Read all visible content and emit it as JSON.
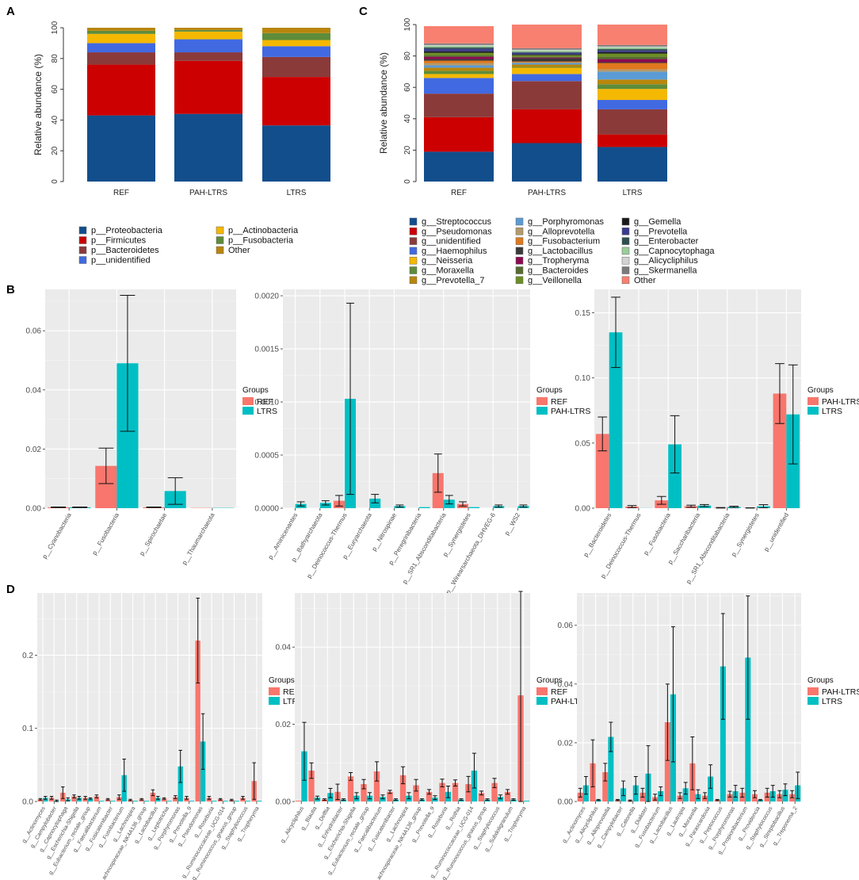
{
  "panels": {
    "A": "A",
    "B": "B",
    "C": "C",
    "D": "D"
  },
  "legend_title": "Groups",
  "colors": {
    "red": "#F8766D",
    "teal": "#00BFC4",
    "panel_bg": "#EBEBEB"
  },
  "chart_data": [
    {
      "id": "A",
      "type": "bar",
      "stacked": true,
      "ylabel": "Relative abundance (%)",
      "ylim": [
        0,
        100
      ],
      "yticks": [
        0,
        20,
        40,
        60,
        80,
        100
      ],
      "categories": [
        "REF",
        "PAH-LTRS",
        "LTRS"
      ],
      "series": [
        {
          "name": "p__Proteobacteria",
          "color": "#124E8C",
          "values": [
            43,
            44,
            36.5
          ]
        },
        {
          "name": "p__Firmicutes",
          "color": "#CC0000",
          "values": [
            33,
            34.5,
            31.5
          ]
        },
        {
          "name": "p__Bacteroidetes",
          "color": "#8B3A3A",
          "values": [
            8,
            5.5,
            13
          ]
        },
        {
          "name": "p__unidentified",
          "color": "#4169E1",
          "values": [
            6,
            8.5,
            7
          ]
        },
        {
          "name": "p__Actinobacteria",
          "color": "#F5B800",
          "values": [
            6,
            5,
            4
          ]
        },
        {
          "name": "p__Fusobacteria",
          "color": "#5E8C3A",
          "values": [
            2,
            1,
            4.5
          ]
        },
        {
          "name": "Other",
          "color": "#B8860B",
          "values": [
            2,
            1.5,
            3.5
          ]
        }
      ]
    },
    {
      "id": "C",
      "type": "bar",
      "stacked": true,
      "ylabel": "Relative abundance (%)",
      "ylim": [
        0,
        100
      ],
      "yticks": [
        0,
        20,
        40,
        60,
        80,
        100
      ],
      "categories": [
        "REF",
        "PAH-LTRS",
        "LTRS"
      ],
      "series": [
        {
          "name": "g__Streptococcus",
          "color": "#124E8C",
          "values": [
            19,
            24.5,
            22
          ]
        },
        {
          "name": "g__Pseudomonas",
          "color": "#CC0000",
          "values": [
            22,
            21.5,
            8
          ]
        },
        {
          "name": "g__unidentified",
          "color": "#8B3A3A",
          "values": [
            15,
            18,
            16
          ]
        },
        {
          "name": "g__Haemophilus",
          "color": "#4169E1",
          "values": [
            10,
            4.5,
            6
          ]
        },
        {
          "name": "g__Neisseria",
          "color": "#F5B800",
          "values": [
            2.5,
            4,
            7
          ]
        },
        {
          "name": "g__Moraxella",
          "color": "#5E8C3A",
          "values": [
            2,
            0.5,
            3
          ]
        },
        {
          "name": "g__Prevotella_7",
          "color": "#B8860B",
          "values": [
            2,
            1.5,
            3
          ]
        },
        {
          "name": "g__Porphyromonas",
          "color": "#5B9BD5",
          "values": [
            1.5,
            1,
            5
          ]
        },
        {
          "name": "g__Alloprevotella",
          "color": "#B39A6B",
          "values": [
            1.5,
            0.5,
            1.5
          ]
        },
        {
          "name": "g__Fusobacterium",
          "color": "#E0781E",
          "values": [
            1.5,
            0.5,
            4
          ]
        },
        {
          "name": "g__Lactobacillus",
          "color": "#3A3A3A",
          "values": [
            1,
            2,
            0.5
          ]
        },
        {
          "name": "g__Tropheryma",
          "color": "#8B0A50",
          "values": [
            1.5,
            0.5,
            2
          ]
        },
        {
          "name": "g__Bacteroides",
          "color": "#556B2F",
          "values": [
            1,
            0.5,
            1.5
          ]
        },
        {
          "name": "g__Veillonella",
          "color": "#6B8E23",
          "values": [
            1.5,
            1,
            2
          ]
        },
        {
          "name": "g__Gemella",
          "color": "#1A1A1A",
          "values": [
            1,
            0.5,
            1
          ]
        },
        {
          "name": "g__Prevotella",
          "color": "#3A3A8C",
          "values": [
            1.5,
            1,
            1
          ]
        },
        {
          "name": "g__Enterobacter",
          "color": "#2F4F4F",
          "values": [
            1,
            0.5,
            1
          ]
        },
        {
          "name": "g__Capnocytophaga",
          "color": "#9ACD9A",
          "values": [
            1,
            1,
            1
          ]
        },
        {
          "name": "g__Alicycliphilus",
          "color": "#D3D3D3",
          "values": [
            0.5,
            0.5,
            0.5
          ]
        },
        {
          "name": "g__Skermanella",
          "color": "#7A7A7A",
          "values": [
            1,
            1,
            1
          ]
        },
        {
          "name": "Other",
          "color": "#F88070",
          "values": [
            11,
            15,
            13
          ]
        }
      ]
    },
    {
      "id": "B1",
      "type": "bar",
      "grouped": true,
      "ylim": [
        0,
        0.074
      ],
      "yticks": [
        0,
        0.02,
        0.04,
        0.06
      ],
      "ytick_labels": [
        "0.00",
        "0.02",
        "0.04",
        "0.06"
      ],
      "categories": [
        "p__Cyanobacteria",
        "p__Fusobacteria",
        "p__Spirochaetae",
        "p__Thaumarchaeota"
      ],
      "series": [
        {
          "name": "REF",
          "color": "#F8766D",
          "values": [
            0.0003,
            0.0143,
            0.0003,
            0.0001
          ],
          "errors": [
            0.0001,
            0.006,
            0.0001,
            0
          ]
        },
        {
          "name": "LTRS",
          "color": "#00BFC4",
          "values": [
            0.0003,
            0.049,
            0.0058,
            0.0001
          ],
          "errors": [
            0.0001,
            0.023,
            0.0045,
            0
          ]
        }
      ]
    },
    {
      "id": "B2",
      "type": "bar",
      "grouped": true,
      "ylim": [
        0,
        0.00206
      ],
      "yticks": [
        0,
        0.0005,
        0.001,
        0.0015,
        0.002
      ],
      "ytick_labels": [
        "0.0000",
        "0.0005",
        "0.0010",
        "0.0015",
        "0.0020"
      ],
      "categories": [
        "p__Aminicenantes",
        "p__Bathyarchaeota",
        "p__Deinococcus-Thermus",
        "p__Euryarchaeota",
        "p__Nitrospinae",
        "p__Peregrinibacteria",
        "p__SR1_Absconditabacteria",
        "p__Synergistetes",
        "p__Wirearsarchaeota_DHVEG-6",
        "p__WS2"
      ],
      "series": [
        {
          "name": "REF",
          "color": "#F8766D",
          "values": [
            0.0,
            0.0,
            7e-05,
            0.0,
            0.0,
            0.0,
            0.00033,
            4e-05,
            0.0,
            0.0
          ],
          "errors": [
            0,
            0,
            5e-05,
            0,
            0,
            0,
            0.00018,
            2e-05,
            0,
            0
          ]
        },
        {
          "name": "PAH-LTRS",
          "color": "#00BFC4",
          "values": [
            4e-05,
            5e-05,
            0.00103,
            9e-05,
            2e-05,
            1e-05,
            8e-05,
            1e-05,
            2e-05,
            2e-05
          ],
          "errors": [
            2e-05,
            2e-05,
            0.0009,
            4e-05,
            1e-05,
            0,
            4e-05,
            0,
            1e-05,
            1e-05
          ]
        }
      ]
    },
    {
      "id": "B3",
      "type": "bar",
      "grouped": true,
      "ylim": [
        0,
        0.168
      ],
      "yticks": [
        0,
        0.05,
        0.1,
        0.15
      ],
      "ytick_labels": [
        "0.00",
        "0.05",
        "0.10",
        "0.15"
      ],
      "categories": [
        "p__Bacteroidetes",
        "p__Deinococcus-Thermus",
        "p__Fusobacteria",
        "p__Saccharibacteria",
        "p__SR1_Absconditabacteria",
        "p__Synergistetes",
        "p__unidentified"
      ],
      "series": [
        {
          "name": "PAH-LTRS",
          "color": "#F8766D",
          "values": [
            0.057,
            0.0012,
            0.006,
            0.0015,
            0.0003,
            0.0002,
            0.088
          ],
          "errors": [
            0.013,
            0.0008,
            0.003,
            0.0008,
            0.0002,
            0.0001,
            0.023
          ]
        },
        {
          "name": "LTRS",
          "color": "#00BFC4",
          "values": [
            0.135,
            0.0001,
            0.049,
            0.002,
            0.001,
            0.0015,
            0.072
          ],
          "errors": [
            0.027,
            0,
            0.022,
            0.0008,
            0.0005,
            0.0012,
            0.038
          ]
        }
      ]
    },
    {
      "id": "D1",
      "type": "bar",
      "grouped": true,
      "ylim": [
        0,
        0.285
      ],
      "yticks": [
        0,
        0.1,
        0.2
      ],
      "ytick_labels": [
        "0.0",
        "0.1",
        "0.2"
      ],
      "categories": [
        "g__Actinomyces",
        "g__Campylobacter",
        "g__Capnocytophaga",
        "g__Escherichia-Shigella",
        "g__Eubacterium_rectale_group",
        "g__Faecalibacterium",
        "g__Fusicatenibacter",
        "g__Fusobacterium",
        "g__Lachnospira",
        "g__Lachnospiraceae_NK4A136_group",
        "g__Lactobacillus",
        "g__Leptotrichia",
        "g__Porphyromonas",
        "g__Prevotella_9",
        "g__Pseudomonas",
        "g__Roseburia",
        "g__Ruminococcaceae_UCG-014",
        "g__Ruminococcus_gnavus_group",
        "g__Staphylococcus",
        "g__Tropheryma"
      ],
      "series": [
        {
          "name": "REF",
          "color": "#F8766D",
          "values": [
            0.003,
            0.005,
            0.012,
            0.007,
            0.005,
            0.007,
            0.003,
            0.006,
            0.002,
            0.003,
            0.012,
            0.004,
            0.006,
            0.005,
            0.22,
            0.005,
            0.003,
            0.002,
            0.005,
            0.028
          ],
          "errors": [
            0.001,
            0.002,
            0.008,
            0.002,
            0.002,
            0.002,
            0.001,
            0.003,
            0.001,
            0.001,
            0.004,
            0.001,
            0.002,
            0.002,
            0.058,
            0.002,
            0.001,
            0.001,
            0.002,
            0.025
          ]
        },
        {
          "name": "LTRS",
          "color": "#00BFC4",
          "values": [
            0.005,
            0.001,
            0.003,
            0.005,
            0.004,
            0.001,
            0.001,
            0.036,
            0.001,
            0.001,
            0.005,
            0.001,
            0.048,
            0.001,
            0.082,
            0.001,
            0.001,
            0.001,
            0.001,
            0.001
          ],
          "errors": [
            0.002,
            0.001,
            0.002,
            0.002,
            0.001,
            0,
            0,
            0.022,
            0,
            0,
            0.002,
            0,
            0.022,
            0,
            0.038,
            0,
            0,
            0,
            0,
            0
          ]
        }
      ]
    },
    {
      "id": "D2",
      "type": "bar",
      "grouped": true,
      "ylim": [
        0,
        0.054
      ],
      "yticks": [
        0,
        0.02,
        0.04
      ],
      "ytick_labels": [
        "0.00",
        "0.02",
        "0.04"
      ],
      "categories": [
        "g__Alicycliphilus",
        "g__Blautia",
        "g__Delftia",
        "g__Enhydrobacter",
        "g__Escherichia-Shigella",
        "g__Eubacterium_rectale_group",
        "g__Faecalibacterium",
        "g__Fusicatenibacter",
        "g__Lachnospira",
        "g__Lachnospiraceae_NK4A136_group",
        "g__Prevotella_9",
        "g__Roseburia",
        "g__Rothia",
        "g__Ruminococcaceae_UCG-014",
        "g__Ruminococcus_gnavus_group",
        "g__Staphylococcus",
        "g__Subdoligranulum",
        "g__Tropheryma"
      ],
      "series": [
        {
          "name": "REF",
          "color": "#F8766D",
          "values": [
            0.0002,
            0.008,
            0.0005,
            0.0025,
            0.0065,
            0.0045,
            0.0078,
            0.0025,
            0.0068,
            0.0042,
            0.0025,
            0.0048,
            0.0048,
            0.0045,
            0.0022,
            0.0048,
            0.0025,
            0.0275
          ],
          "errors": [
            0,
            0.002,
            0.0002,
            0.002,
            0.001,
            0.0012,
            0.0025,
            0.0004,
            0.0022,
            0.0015,
            0.0006,
            0.001,
            0.0008,
            0.002,
            0.0005,
            0.0012,
            0.0006,
            0.028
          ]
        },
        {
          "name": "PAH-LTRS",
          "color": "#00BFC4",
          "values": [
            0.013,
            0.001,
            0.0022,
            0.0005,
            0.0015,
            0.0015,
            0.0012,
            0.0005,
            0.0015,
            0.0005,
            0.001,
            0.0025,
            0.0005,
            0.008,
            0.0005,
            0.0012,
            0.0005,
            0.0002
          ],
          "errors": [
            0.0075,
            0.0004,
            0.0012,
            0.0002,
            0.0008,
            0.0008,
            0.0005,
            0.0002,
            0.0008,
            0.0002,
            0.0005,
            0.0015,
            0.0002,
            0.0045,
            0.0002,
            0.0005,
            0.0002,
            0
          ]
        }
      ]
    },
    {
      "id": "D3",
      "type": "bar",
      "grouped": true,
      "ylim": [
        0,
        0.071
      ],
      "yticks": [
        0,
        0.02,
        0.04,
        0.06
      ],
      "ytick_labels": [
        "0.00",
        "0.02",
        "0.04",
        "0.06"
      ],
      "categories": [
        "g__Actinomyces",
        "g__Alicycliphilus",
        "g__Alloprevotella",
        "g__Campylobacter",
        "g__Catonella",
        "g__Dialister",
        "g__Fusobacterium",
        "g__Lactobacillus",
        "g__Lautropia",
        "g__Moraxella",
        "g__Parascardovia",
        "g__Peptococcus",
        "g__Porphyromonas",
        "g__Propionibacterium",
        "g__Providencia",
        "g__Staphylococcus",
        "g__Streptobacillus",
        "g__Treponema_2"
      ],
      "series": [
        {
          "name": "PAH-LTRS",
          "color": "#F8766D",
          "values": [
            0.003,
            0.013,
            0.01,
            0.0005,
            0.0003,
            0.003,
            0.0015,
            0.027,
            0.002,
            0.013,
            0.002,
            0.0005,
            0.0025,
            0.003,
            0.0025,
            0.003,
            0.0025,
            0.0025
          ],
          "errors": [
            0.0015,
            0.008,
            0.003,
            0.0002,
            0.0002,
            0.0015,
            0.001,
            0.013,
            0.001,
            0.009,
            0.001,
            0.0002,
            0.001,
            0.0015,
            0.0012,
            0.0015,
            0.0012,
            0.0012
          ]
        },
        {
          "name": "LTRS",
          "color": "#00BFC4",
          "values": [
            0.0055,
            0.0005,
            0.022,
            0.0045,
            0.0055,
            0.0095,
            0.0035,
            0.0365,
            0.0045,
            0.0025,
            0.0085,
            0.046,
            0.0035,
            0.049,
            0.0005,
            0.0035,
            0.004,
            0.0055
          ],
          "errors": [
            0.003,
            0.0002,
            0.005,
            0.0025,
            0.003,
            0.0095,
            0.0015,
            0.023,
            0.002,
            0.0015,
            0.004,
            0.018,
            0.002,
            0.021,
            0.0002,
            0.002,
            0.002,
            0.0045
          ]
        }
      ]
    }
  ]
}
